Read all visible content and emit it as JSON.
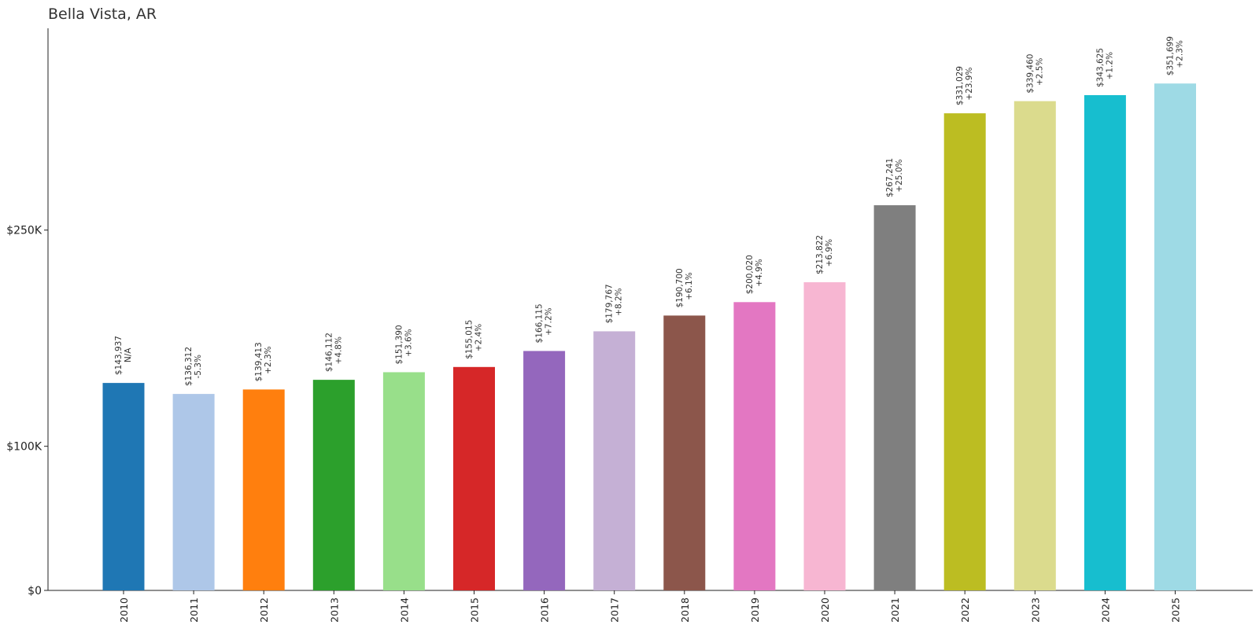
{
  "chart_data": {
    "type": "bar",
    "title": "Bella Vista, AR",
    "xlabel": "",
    "ylabel": "",
    "categories": [
      "2010",
      "2011",
      "2012",
      "2013",
      "2014",
      "2015",
      "2016",
      "2017",
      "2018",
      "2019",
      "2020",
      "2021",
      "2022",
      "2023",
      "2024",
      "2025"
    ],
    "values": [
      143937,
      136312,
      139413,
      146112,
      151390,
      155015,
      166115,
      179767,
      190700,
      200020,
      213822,
      267241,
      331029,
      339460,
      343625,
      351699
    ],
    "value_labels": [
      "$143,937",
      "$136,312",
      "$139,413",
      "$146,112",
      "$151,390",
      "$155,015",
      "$166,115",
      "$179,767",
      "$190,700",
      "$200,020",
      "$213,822",
      "$267,241",
      "$331,029",
      "$339,460",
      "$343,625",
      "$351,699"
    ],
    "change_labels": [
      "N/A",
      "-5.3%",
      "+2.3%",
      "+4.8%",
      "+3.6%",
      "+2.4%",
      "+7.2%",
      "+8.2%",
      "+6.1%",
      "+4.9%",
      "+6.9%",
      "+25.0%",
      "+23.9%",
      "+2.5%",
      "+1.2%",
      "+2.3%"
    ],
    "colors": [
      "#1f77b4",
      "#aec7e8",
      "#ff7f0e",
      "#2ca02c",
      "#98df8a",
      "#d62728",
      "#9467bd",
      "#c5b0d5",
      "#8c564b",
      "#e377c2",
      "#f7b6d2",
      "#7f7f7f",
      "#bcbd22",
      "#dbdb8d",
      "#17becf",
      "#9edae5"
    ],
    "y_ticks": [
      0,
      100000,
      250000
    ],
    "y_tick_labels": [
      "$0",
      "$100K",
      "$250K"
    ],
    "ylim": [
      0,
      390000
    ],
    "grid": false,
    "legend": "none"
  }
}
